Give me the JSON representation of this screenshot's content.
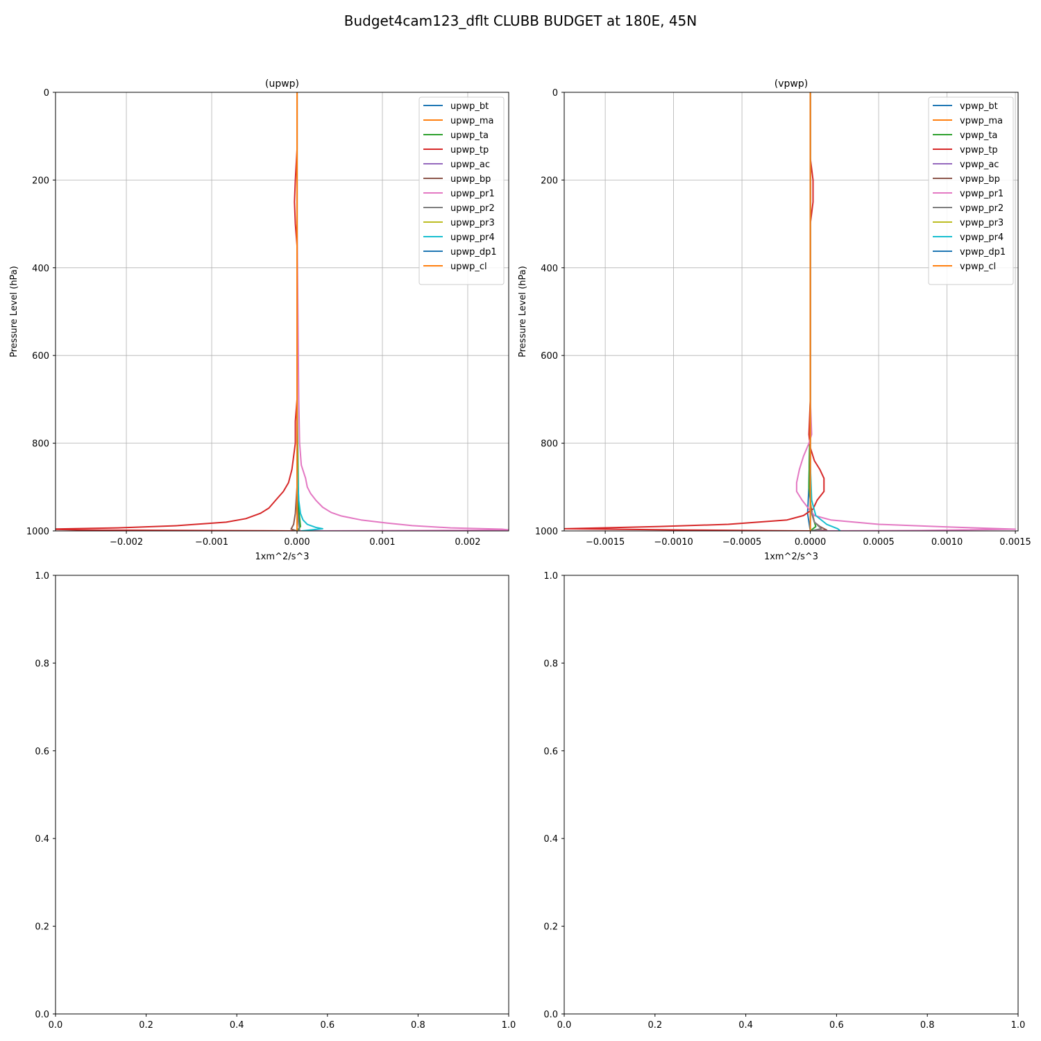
{
  "figure_title": "Budget4cam123_dflt CLUBB BUDGET at 180E, 45N",
  "colors": {
    "C0": "#1f77b4",
    "C1": "#ff7f0e",
    "C2": "#2ca02c",
    "C3": "#d62728",
    "C4": "#9467bd",
    "C5": "#8c564b",
    "C6": "#e377c2",
    "C7": "#7f7f7f",
    "C8": "#bcbd22",
    "C9": "#17becf",
    "grid": "#b0b0b0"
  },
  "chart_data": [
    {
      "type": "line",
      "title": "(upwp)",
      "xlabel": "1xm^2/s^3",
      "ylabel": "Pressure Level (hPa)",
      "xlim": [
        -0.00283,
        0.00248
      ],
      "ylim": [
        1000,
        0
      ],
      "xticks": [
        -0.002,
        -0.001,
        0.0,
        0.001,
        0.002
      ],
      "xtick_labels": [
        "−0.002",
        "−0.001",
        "0.000",
        "0.001",
        "0.002"
      ],
      "yticks": [
        0,
        200,
        400,
        600,
        800,
        1000
      ],
      "ytick_labels": [
        "0",
        "200",
        "400",
        "600",
        "800",
        "1000"
      ],
      "grid": true,
      "legend_position": "top-right",
      "series": [
        {
          "name": "upwp_bt",
          "color": "C0",
          "points": [
            [
              0,
              0
            ],
            [
              0,
              400
            ],
            [
              0,
              800
            ],
            [
              1e-05,
              950
            ],
            [
              3e-05,
              990
            ],
            [
              2e-05,
              998
            ]
          ]
        },
        {
          "name": "upwp_ma",
          "color": "C1",
          "points": [
            [
              0,
              0
            ],
            [
              0,
              1000
            ]
          ]
        },
        {
          "name": "upwp_ta",
          "color": "C2",
          "points": [
            [
              0,
              0
            ],
            [
              0,
              700
            ],
            [
              1e-05,
              850
            ],
            [
              2e-05,
              950
            ],
            [
              4e-05,
              990
            ],
            [
              0,
              1000
            ]
          ]
        },
        {
          "name": "upwp_tp",
          "color": "C3",
          "points": [
            [
              0,
              0
            ],
            [
              0,
              130
            ],
            [
              -2e-05,
              200
            ],
            [
              -3e-05,
              250
            ],
            [
              -2e-05,
              300
            ],
            [
              0,
              350
            ],
            [
              0,
              600
            ],
            [
              0,
              700
            ],
            [
              -2e-05,
              750
            ],
            [
              -2e-05,
              800
            ],
            [
              -4e-05,
              830
            ],
            [
              -6e-05,
              860
            ],
            [
              -0.0001,
              890
            ],
            [
              -0.00016,
              910
            ],
            [
              -0.00025,
              930
            ],
            [
              -0.00033,
              948
            ],
            [
              -0.00043,
              960
            ],
            [
              -0.0006,
              972
            ],
            [
              -0.00083,
              980
            ],
            [
              -0.0014,
              988
            ],
            [
              -0.0021,
              993
            ],
            [
              -0.0029,
              996
            ],
            [
              -0.0025,
              998
            ],
            [
              -0.0012,
              999
            ],
            [
              0,
              1000
            ]
          ]
        },
        {
          "name": "upwp_ac",
          "color": "C4",
          "points": [
            [
              0,
              0
            ],
            [
              0,
              1000
            ]
          ]
        },
        {
          "name": "upwp_bp",
          "color": "C5",
          "points": [
            [
              0,
              0
            ],
            [
              0,
              900
            ],
            [
              -2e-05,
              960
            ],
            [
              -4e-05,
              985
            ],
            [
              -7e-05,
              996
            ],
            [
              0,
              1000
            ]
          ]
        },
        {
          "name": "upwp_pr1",
          "color": "C6",
          "points": [
            [
              0,
              0
            ],
            [
              0,
              300
            ],
            [
              1e-05,
              500
            ],
            [
              2e-05,
              700
            ],
            [
              3e-05,
              800
            ],
            [
              5e-05,
              850
            ],
            [
              0.0001,
              880
            ],
            [
              0.00012,
              900
            ],
            [
              0.00016,
              915
            ],
            [
              0.00022,
              930
            ],
            [
              0.0003,
              946
            ],
            [
              0.0004,
              958
            ],
            [
              0.00052,
              966
            ],
            [
              0.00075,
              975
            ],
            [
              0.00105,
              982
            ],
            [
              0.00135,
              988
            ],
            [
              0.0018,
              993
            ],
            [
              0.0024,
              996
            ],
            [
              0.0025,
              998
            ],
            [
              0.0015,
              999
            ],
            [
              0,
              1000
            ]
          ]
        },
        {
          "name": "upwp_pr2",
          "color": "C7",
          "points": [
            [
              0,
              0
            ],
            [
              0,
              950
            ],
            [
              2e-05,
              985
            ],
            [
              3e-05,
              998
            ],
            [
              0,
              1000
            ]
          ]
        },
        {
          "name": "upwp_pr3",
          "color": "C8",
          "points": [
            [
              0,
              0
            ],
            [
              0,
              1000
            ]
          ]
        },
        {
          "name": "upwp_pr4",
          "color": "C9",
          "points": [
            [
              0,
              0
            ],
            [
              0,
              850
            ],
            [
              2e-05,
              930
            ],
            [
              4e-05,
              960
            ],
            [
              7e-05,
              975
            ],
            [
              0.00012,
              985
            ],
            [
              0.00022,
              992
            ],
            [
              0.0003,
              995
            ],
            [
              5e-05,
              1000
            ]
          ]
        },
        {
          "name": "upwp_dp1",
          "color": "C0",
          "points": [
            [
              0,
              0
            ],
            [
              0,
              1000
            ]
          ]
        },
        {
          "name": "upwp_cl",
          "color": "C1",
          "points": [
            [
              0,
              0
            ],
            [
              0,
              1000
            ]
          ]
        }
      ]
    },
    {
      "type": "line",
      "title": "(vpwp)",
      "xlabel": "1xm^2/s^3",
      "ylabel": "Pressure Level (hPa)",
      "xlim": [
        -0.0018,
        0.00152
      ],
      "ylim": [
        1000,
        0
      ],
      "xticks": [
        -0.0015,
        -0.001,
        -0.0005,
        0.0,
        0.0005,
        0.001,
        0.0015
      ],
      "xtick_labels": [
        "−0.0015",
        "−0.0010",
        "−0.0005",
        "0.0000",
        "0.0005",
        "0.0010",
        "0.0015"
      ],
      "yticks": [
        0,
        200,
        400,
        600,
        800,
        1000
      ],
      "ytick_labels": [
        "0",
        "200",
        "400",
        "600",
        "800",
        "1000"
      ],
      "grid": true,
      "legend_position": "top-right",
      "series": [
        {
          "name": "vpwp_bt",
          "color": "C0",
          "points": [
            [
              0,
              0
            ],
            [
              0,
              700
            ],
            [
              -1e-05,
              900
            ],
            [
              -2e-05,
              960
            ],
            [
              0,
              1000
            ]
          ]
        },
        {
          "name": "vpwp_ma",
          "color": "C1",
          "points": [
            [
              0,
              0
            ],
            [
              0,
              1000
            ]
          ]
        },
        {
          "name": "vpwp_ta",
          "color": "C2",
          "points": [
            [
              0,
              0
            ],
            [
              0,
              700
            ],
            [
              -1e-05,
              900
            ],
            [
              1e-05,
              960
            ],
            [
              4e-05,
              990
            ],
            [
              0,
              1000
            ]
          ]
        },
        {
          "name": "vpwp_tp",
          "color": "C3",
          "points": [
            [
              0,
              0
            ],
            [
              0,
              150
            ],
            [
              2e-05,
              200
            ],
            [
              2e-05,
              250
            ],
            [
              0,
              300
            ],
            [
              0,
              700
            ],
            [
              -1e-05,
              780
            ],
            [
              0,
              810
            ],
            [
              3e-05,
              840
            ],
            [
              7e-05,
              860
            ],
            [
              0.0001,
              880
            ],
            [
              0.0001,
              910
            ],
            [
              5e-05,
              930
            ],
            [
              2e-05,
              950
            ],
            [
              -5e-05,
              965
            ],
            [
              -0.00017,
              975
            ],
            [
              -0.0006,
              985
            ],
            [
              -0.0011,
              990
            ],
            [
              -0.0018,
              995
            ],
            [
              -0.0009,
              998
            ],
            [
              0,
              1000
            ]
          ]
        },
        {
          "name": "vpwp_ac",
          "color": "C4",
          "points": [
            [
              0,
              0
            ],
            [
              0,
              1000
            ]
          ]
        },
        {
          "name": "vpwp_bp",
          "color": "C5",
          "points": [
            [
              0,
              0
            ],
            [
              0,
              940
            ],
            [
              3e-05,
              980
            ],
            [
              7e-05,
              990
            ],
            [
              0.00012,
              998
            ],
            [
              0,
              1000
            ]
          ]
        },
        {
          "name": "vpwp_pr1",
          "color": "C6",
          "points": [
            [
              0,
              0
            ],
            [
              0,
              700
            ],
            [
              1e-05,
              780
            ],
            [
              -1e-05,
              800
            ],
            [
              -5e-05,
              830
            ],
            [
              -8e-05,
              860
            ],
            [
              -0.0001,
              890
            ],
            [
              -0.0001,
              910
            ],
            [
              -6e-05,
              930
            ],
            [
              -1e-05,
              950
            ],
            [
              3e-05,
              965
            ],
            [
              0.00015,
              975
            ],
            [
              0.0005,
              985
            ],
            [
              0.001,
              991
            ],
            [
              0.0015,
              996
            ],
            [
              0.0008,
              999
            ],
            [
              0,
              1000
            ]
          ]
        },
        {
          "name": "vpwp_pr2",
          "color": "C7",
          "points": [
            [
              0,
              0
            ],
            [
              0,
              950
            ],
            [
              3e-05,
              980
            ],
            [
              8e-05,
              995
            ],
            [
              0,
              1000
            ]
          ]
        },
        {
          "name": "vpwp_pr3",
          "color": "C8",
          "points": [
            [
              0,
              0
            ],
            [
              0,
              1000
            ]
          ]
        },
        {
          "name": "vpwp_pr4",
          "color": "C9",
          "points": [
            [
              0,
              0
            ],
            [
              0,
              850
            ],
            [
              1e-05,
              930
            ],
            [
              4e-05,
              965
            ],
            [
              0.00012,
              985
            ],
            [
              0.0002,
              995
            ],
            [
              0.00022,
              1000
            ]
          ]
        },
        {
          "name": "vpwp_dp1",
          "color": "C0",
          "points": [
            [
              0,
              0
            ],
            [
              0,
              1000
            ]
          ]
        },
        {
          "name": "vpwp_cl",
          "color": "C1",
          "points": [
            [
              0,
              0
            ],
            [
              0,
              1000
            ]
          ]
        }
      ]
    },
    {
      "type": "line",
      "title": "",
      "xlabel": "",
      "ylabel": "",
      "xlim": [
        0,
        1
      ],
      "ylim": [
        0,
        1
      ],
      "xticks": [
        0,
        0.2,
        0.4,
        0.6,
        0.8,
        1.0
      ],
      "xtick_labels": [
        "0.0",
        "0.2",
        "0.4",
        "0.6",
        "0.8",
        "1.0"
      ],
      "yticks": [
        0,
        0.2,
        0.4,
        0.6,
        0.8,
        1.0
      ],
      "ytick_labels": [
        "0.0",
        "0.2",
        "0.4",
        "0.6",
        "0.8",
        "1.0"
      ],
      "grid": false,
      "series": []
    },
    {
      "type": "line",
      "title": "",
      "xlabel": "",
      "ylabel": "",
      "xlim": [
        0,
        1
      ],
      "ylim": [
        0,
        1
      ],
      "xticks": [
        0,
        0.2,
        0.4,
        0.6,
        0.8,
        1.0
      ],
      "xtick_labels": [
        "0.0",
        "0.2",
        "0.4",
        "0.6",
        "0.8",
        "1.0"
      ],
      "yticks": [
        0,
        0.2,
        0.4,
        0.6,
        0.8,
        1.0
      ],
      "ytick_labels": [
        "0.0",
        "0.2",
        "0.4",
        "0.6",
        "0.8",
        "1.0"
      ],
      "grid": false,
      "series": []
    }
  ]
}
